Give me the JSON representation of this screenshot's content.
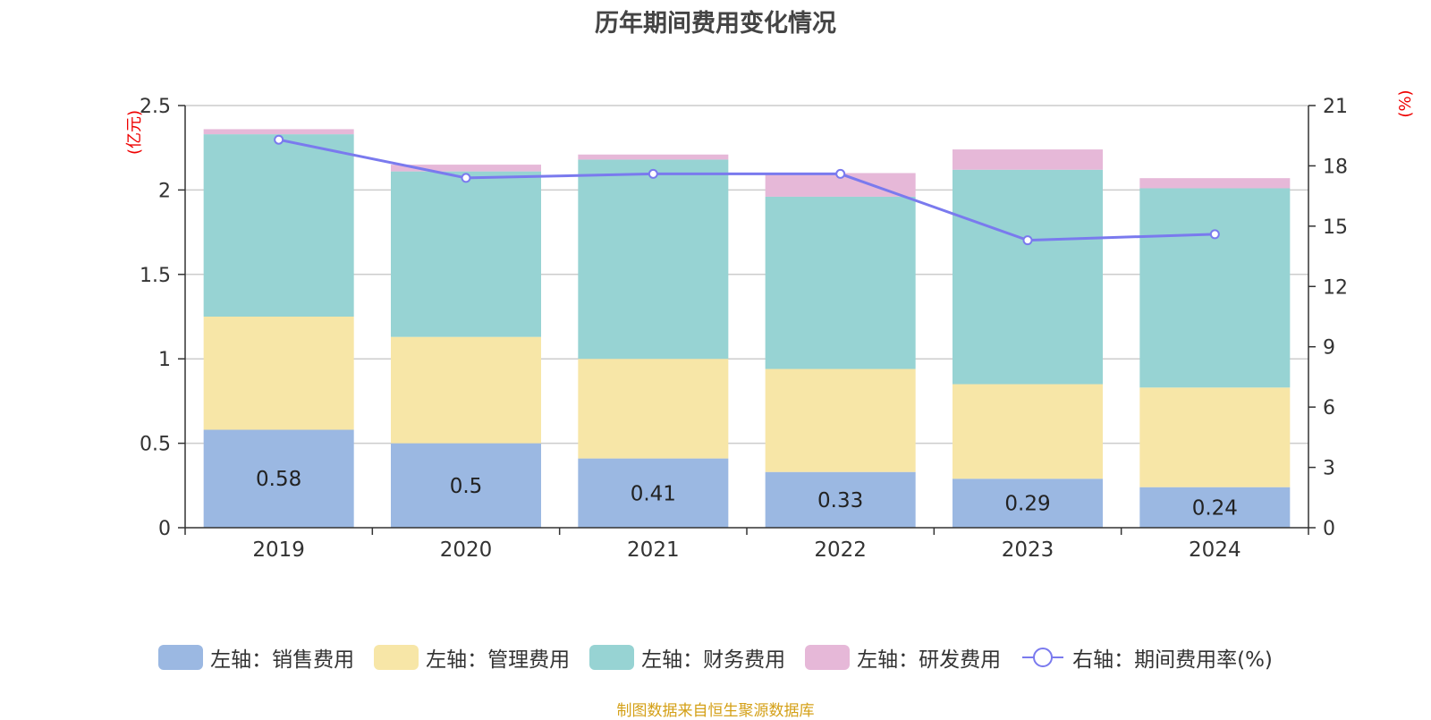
{
  "colors": {
    "sales": "#9bb8e2",
    "management": "#f7e6a7",
    "finance": "#97d3d3",
    "rnd": "#e6b8d8",
    "rate": "#7a7aee",
    "unit": "#ee0000",
    "source": "#d4a017"
  },
  "chart_data": {
    "type": "bar",
    "title": "历年期间费用变化情况",
    "categories": [
      "2019",
      "2020",
      "2021",
      "2022",
      "2023",
      "2024"
    ],
    "y_left": {
      "unit": "(亿元)",
      "ylim": [
        0,
        2.5
      ],
      "ticks": [
        "0",
        "0.5",
        "1",
        "1.5",
        "2",
        "2.5"
      ]
    },
    "y_right": {
      "unit": "(%)",
      "ylim": [
        0,
        21
      ],
      "ticks": [
        "0",
        "3",
        "6",
        "9",
        "12",
        "15",
        "18",
        "21"
      ]
    },
    "grid": true,
    "legend_position": "bottom",
    "series": [
      {
        "name": "左轴：销售费用",
        "type": "bar",
        "stack": true,
        "axis": "left",
        "color_key": "sales",
        "values": [
          0.58,
          0.5,
          0.41,
          0.33,
          0.29,
          0.24
        ],
        "data_labels": [
          "0.58",
          "0.5",
          "0.41",
          "0.33",
          "0.29",
          "0.24"
        ]
      },
      {
        "name": "左轴：管理费用",
        "type": "bar",
        "stack": true,
        "axis": "left",
        "color_key": "management",
        "values": [
          0.67,
          0.63,
          0.59,
          0.61,
          0.56,
          0.59
        ]
      },
      {
        "name": "左轴：财务费用",
        "type": "bar",
        "stack": true,
        "axis": "left",
        "color_key": "finance",
        "values": [
          1.08,
          0.98,
          1.18,
          1.02,
          1.27,
          1.18
        ]
      },
      {
        "name": "左轴：研发费用",
        "type": "bar",
        "stack": true,
        "axis": "left",
        "color_key": "rnd",
        "values": [
          0.03,
          0.04,
          0.03,
          0.14,
          0.12,
          0.06
        ]
      },
      {
        "name": "右轴：期间费用率(%)",
        "type": "line",
        "axis": "right",
        "color_key": "rate",
        "values": [
          19.3,
          17.4,
          17.6,
          17.6,
          14.3,
          14.6
        ]
      }
    ]
  },
  "source_text": "制图数据来自恒生聚源数据库"
}
